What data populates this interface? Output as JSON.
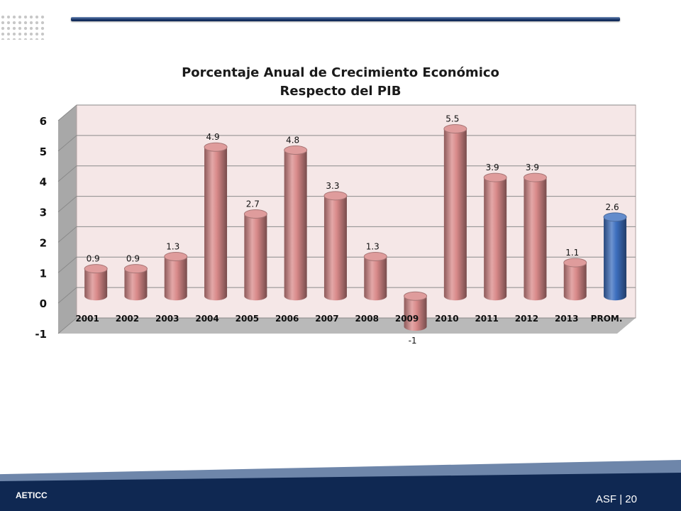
{
  "footer": {
    "organization": "AETICC",
    "page_label": "ASF | 20"
  },
  "colors": {
    "bar_default": "#d98a8a",
    "bar_average": "#3d6fbf",
    "plot_back_wall": "#f5e7e7",
    "side_wall": "#a8a8a8",
    "floor": "#b9b9b9"
  },
  "chart_data": {
    "type": "bar",
    "style": "3d-cylinder",
    "title": "Porcentaje Anual de Crecimiento Económico",
    "subtitle": "Respecto del PIB",
    "xlabel": "",
    "ylabel": "",
    "ylim": [
      -1,
      6
    ],
    "yticks": [
      "6",
      "5",
      "4",
      "3",
      "2",
      "1",
      "0",
      "-1"
    ],
    "grid": true,
    "categories": [
      "2001",
      "2002",
      "2003",
      "2004",
      "2005",
      "2006",
      "2007",
      "2008",
      "2009",
      "2010",
      "2011",
      "2012",
      "2013",
      "PROM."
    ],
    "values": [
      0.9,
      0.9,
      1.3,
      4.9,
      2.7,
      4.8,
      3.3,
      1.3,
      -1,
      5.5,
      3.9,
      3.9,
      1.1,
      2.6
    ],
    "data_labels": [
      "0.9",
      "0.9",
      "1.3",
      "4.9",
      "2.7",
      "4.8",
      "3.3",
      "1.3",
      "-1",
      "5.5",
      "3.9",
      "3.9",
      "1.1",
      "2.6"
    ],
    "highlight_category": "PROM."
  }
}
